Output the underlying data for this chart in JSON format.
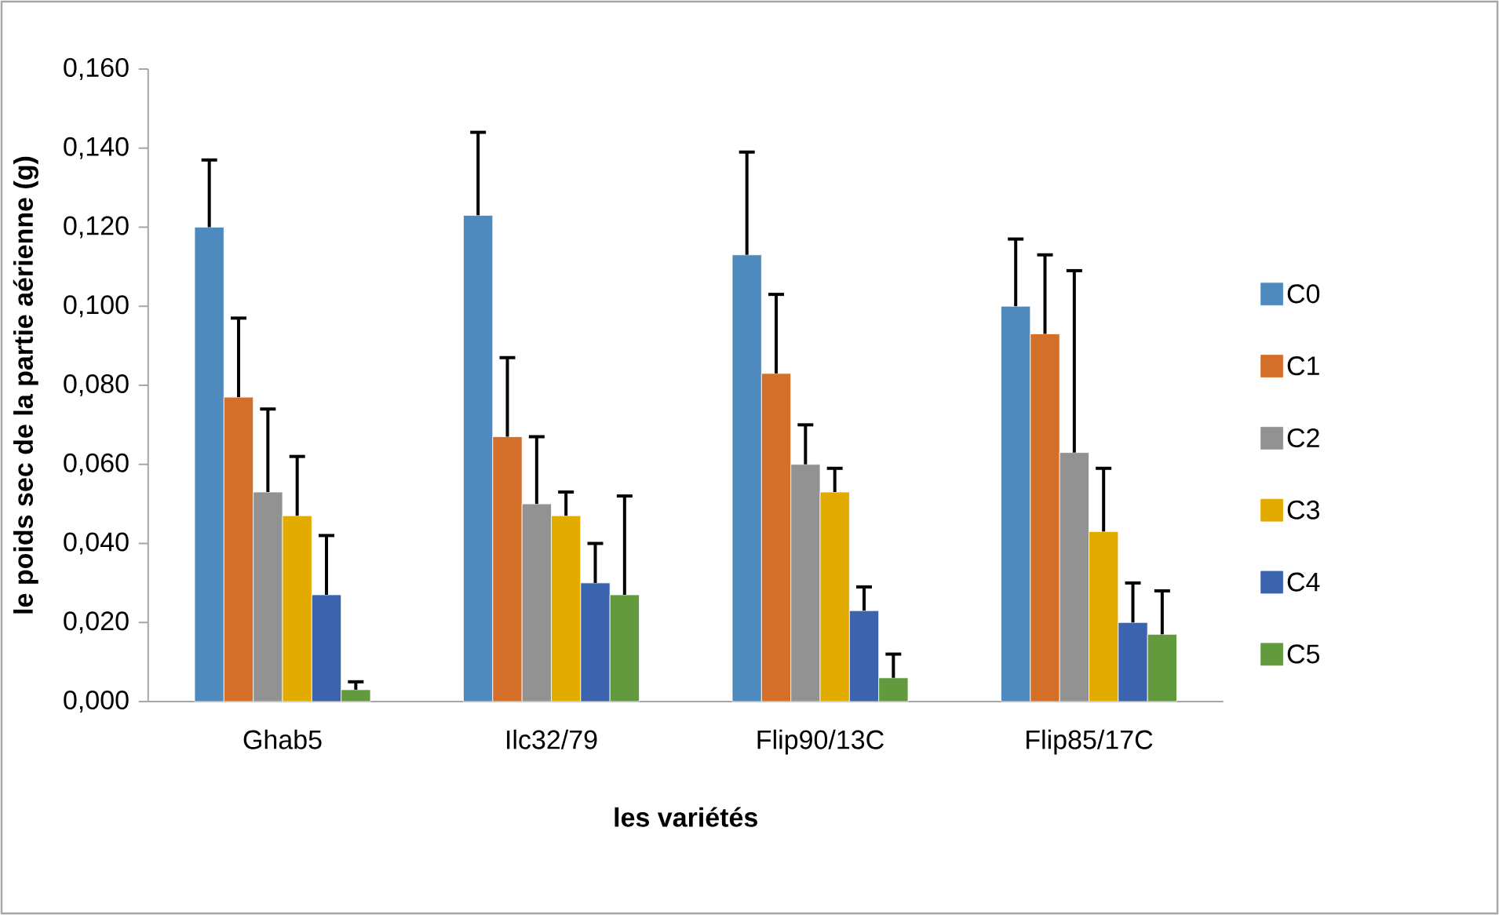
{
  "chart_data": {
    "type": "bar",
    "xlabel": "les variétés",
    "ylabel": "le poids sec de la partie aérienne (g)",
    "categories": [
      "Ghab5",
      "Ilc32/79",
      "Flip90/13C",
      "Flip85/17C"
    ],
    "series": [
      {
        "name": "C0",
        "color": "#4f8abe",
        "values": [
          0.12,
          0.123,
          0.113,
          0.1
        ],
        "errors": [
          [
            0.12,
            0.137
          ],
          [
            0.123,
            0.144
          ],
          [
            0.113,
            0.139
          ],
          [
            0.1,
            0.117
          ]
        ]
      },
      {
        "name": "C1",
        "color": "#d46f2a",
        "values": [
          0.077,
          0.067,
          0.083,
          0.093
        ],
        "errors": [
          [
            0.077,
            0.097
          ],
          [
            0.067,
            0.087
          ],
          [
            0.083,
            0.103
          ],
          [
            0.093,
            0.113
          ]
        ]
      },
      {
        "name": "C2",
        "color": "#929292",
        "values": [
          0.053,
          0.05,
          0.06,
          0.063
        ],
        "errors": [
          [
            0.053,
            0.074
          ],
          [
            0.05,
            0.067
          ],
          [
            0.06,
            0.07
          ],
          [
            0.063,
            0.109
          ]
        ]
      },
      {
        "name": "C3",
        "color": "#e3aa00",
        "values": [
          0.047,
          0.047,
          0.053,
          0.043
        ],
        "errors": [
          [
            0.047,
            0.062
          ],
          [
            0.047,
            0.053
          ],
          [
            0.053,
            0.059
          ],
          [
            0.043,
            0.059
          ]
        ]
      },
      {
        "name": "C4",
        "color": "#3c64ae",
        "values": [
          0.027,
          0.03,
          0.023,
          0.02
        ],
        "errors": [
          [
            0.027,
            0.042
          ],
          [
            0.03,
            0.04
          ],
          [
            0.023,
            0.029
          ],
          [
            0.02,
            0.03
          ]
        ]
      },
      {
        "name": "C5",
        "color": "#639a3d",
        "values": [
          0.003,
          0.027,
          0.006,
          0.017
        ],
        "errors": [
          [
            0.003,
            0.005
          ],
          [
            0.027,
            0.052
          ],
          [
            0.006,
            0.012
          ],
          [
            0.017,
            0.028
          ]
        ]
      }
    ],
    "ylim": [
      0,
      0.16
    ],
    "yticks": [
      {
        "value": 0,
        "label": "0,000"
      },
      {
        "value": 0.02,
        "label": "0,020"
      },
      {
        "value": 0.04,
        "label": "0,040"
      },
      {
        "value": 0.06,
        "label": "0,060"
      },
      {
        "value": 0.08,
        "label": "0,080"
      },
      {
        "value": 0.1,
        "label": "0,100"
      },
      {
        "value": 0.12,
        "label": "0,120"
      },
      {
        "value": 0.14,
        "label": "0,140"
      },
      {
        "value": 0.16,
        "label": "0,160"
      }
    ],
    "grid": false,
    "legend": "right"
  }
}
